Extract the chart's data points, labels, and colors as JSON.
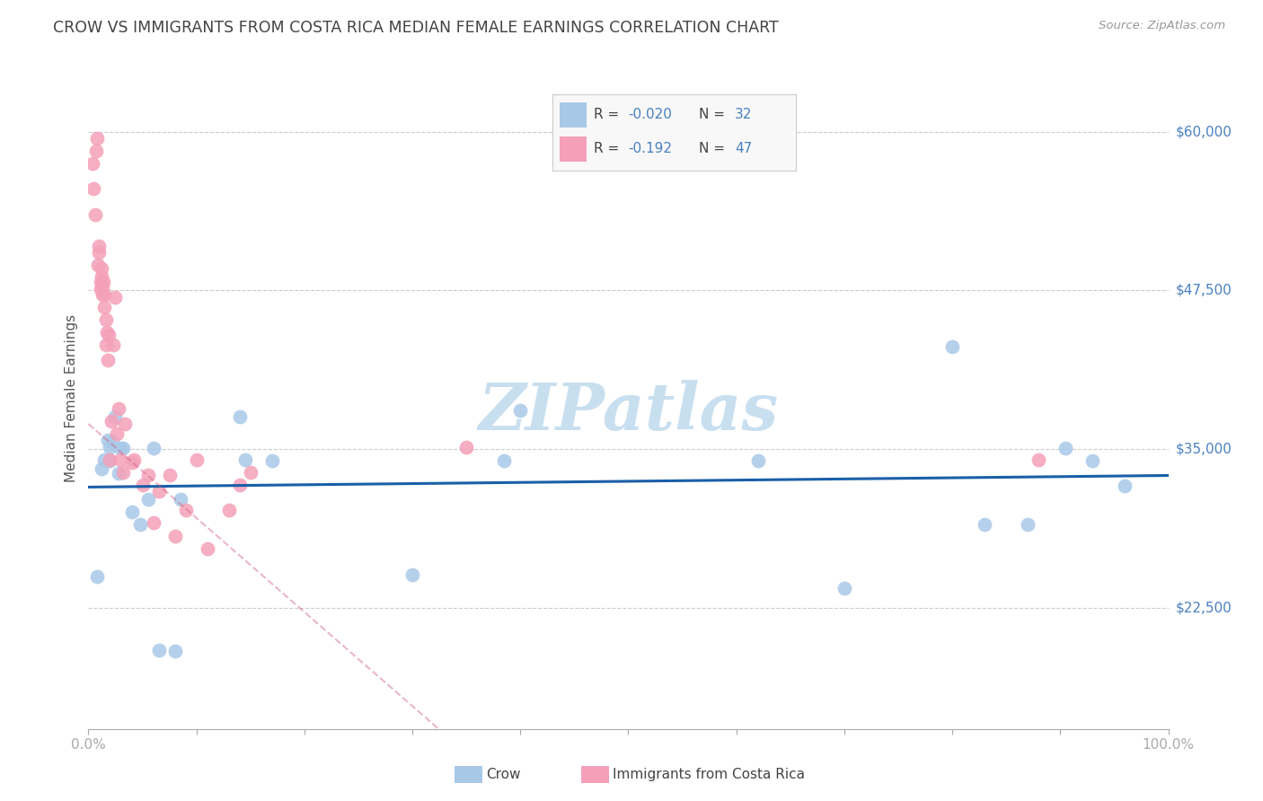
{
  "title": "CROW VS IMMIGRANTS FROM COSTA RICA MEDIAN FEMALE EARNINGS CORRELATION CHART",
  "source": "Source: ZipAtlas.com",
  "ylabel": "Median Female Earnings",
  "xlim": [
    0.0,
    1.0
  ],
  "ylim": [
    13000,
    65000
  ],
  "ytick_positions": [
    22500,
    35000,
    47500,
    60000
  ],
  "ytick_labels": [
    "$22,500",
    "$35,000",
    "$47,500",
    "$60,000"
  ],
  "xtick_positions": [
    0.0,
    0.1,
    0.2,
    0.3,
    0.4,
    0.5,
    0.6,
    0.7,
    0.8,
    0.9,
    1.0
  ],
  "xtick_labels": [
    "0.0%",
    "",
    "",
    "",
    "",
    "",
    "",
    "",
    "",
    "",
    "100.0%"
  ],
  "crow_R": "-0.020",
  "crow_N": "32",
  "costa_rica_R": "-0.192",
  "costa_rica_N": "47",
  "crow_color": "#a8c8e8",
  "costa_rica_color": "#f4a0b8",
  "crow_trend_color": "#1a5fa8",
  "costa_rica_trend_color": "#d06080",
  "grid_color": "#cccccc",
  "watermark": "ZIPatlas",
  "watermark_color": "#c8dff0",
  "title_color": "#444444",
  "axis_label_color": "#4a80c0",
  "background_color": "#ffffff",
  "legend_box_color": "#f8f8f8",
  "legend_border_color": "#cccccc",
  "crow_points_x": [
    0.008,
    0.012,
    0.015,
    0.018,
    0.02,
    0.02,
    0.022,
    0.025,
    0.028,
    0.03,
    0.032,
    0.04,
    0.048,
    0.055,
    0.06,
    0.065,
    0.08,
    0.085,
    0.14,
    0.145,
    0.17,
    0.3,
    0.385,
    0.4,
    0.62,
    0.7,
    0.8,
    0.83,
    0.87,
    0.905,
    0.93,
    0.96
  ],
  "crow_points_y": [
    25000,
    33500,
    34200,
    35700,
    34100,
    35200,
    35600,
    37600,
    33100,
    35100,
    35100,
    30100,
    29100,
    31100,
    35100,
    19200,
    19100,
    31100,
    37600,
    34200,
    34100,
    25100,
    34100,
    38100,
    34100,
    24100,
    43100,
    29100,
    29100,
    35100,
    34100,
    32100
  ],
  "costa_rica_points_x": [
    0.004,
    0.005,
    0.006,
    0.007,
    0.008,
    0.009,
    0.01,
    0.01,
    0.011,
    0.011,
    0.012,
    0.012,
    0.013,
    0.013,
    0.014,
    0.015,
    0.015,
    0.016,
    0.016,
    0.017,
    0.018,
    0.019,
    0.02,
    0.021,
    0.023,
    0.025,
    0.026,
    0.028,
    0.03,
    0.032,
    0.034,
    0.04,
    0.042,
    0.05,
    0.055,
    0.06,
    0.065,
    0.075,
    0.08,
    0.09,
    0.1,
    0.11,
    0.13,
    0.14,
    0.15,
    0.35,
    0.88
  ],
  "costa_rica_points_y": [
    57500,
    55500,
    53500,
    58500,
    59500,
    49500,
    50500,
    51000,
    47600,
    48200,
    48600,
    49200,
    47200,
    47700,
    48200,
    46200,
    47200,
    45200,
    43200,
    44200,
    42000,
    44000,
    34200,
    37200,
    43200,
    47000,
    36200,
    38200,
    34200,
    33200,
    37000,
    34000,
    34200,
    32200,
    33000,
    29200,
    31700,
    33000,
    28200,
    30200,
    34200,
    27200,
    30200,
    32200,
    33200,
    35200,
    34200
  ]
}
